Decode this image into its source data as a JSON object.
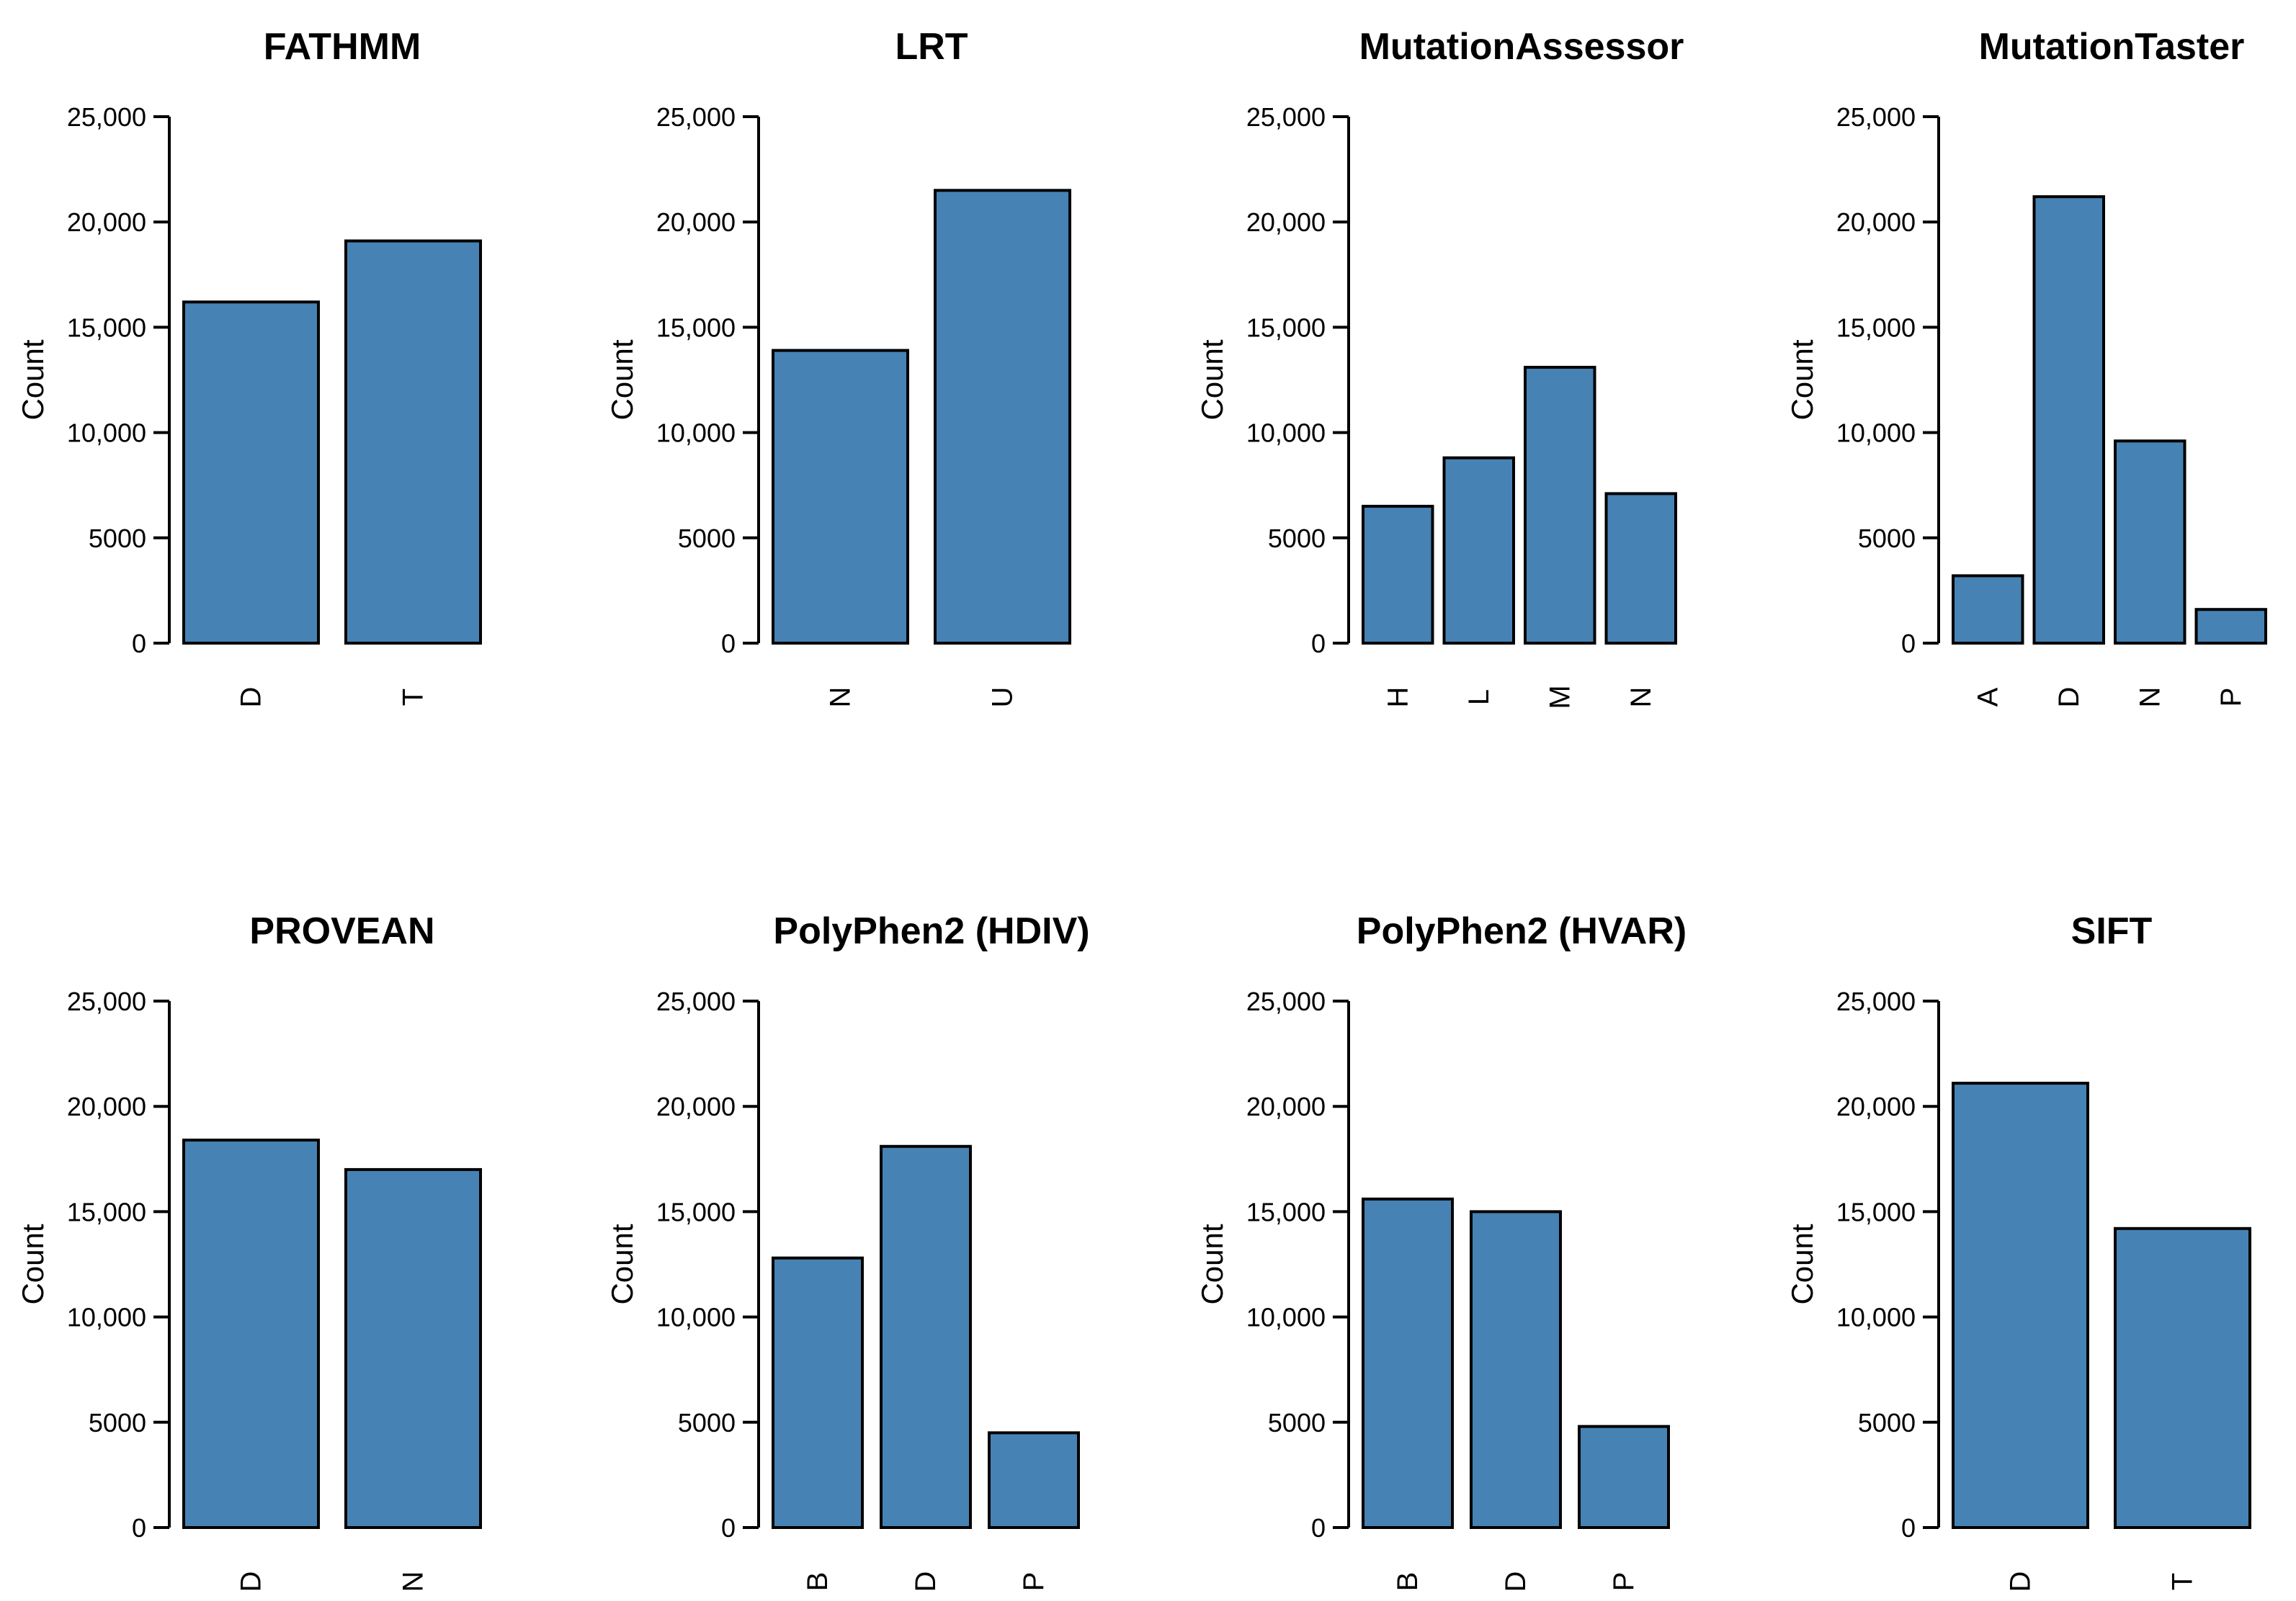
{
  "figure": {
    "bar_color": "#4682B4",
    "edge_color": "#000000"
  },
  "chart_data": [
    {
      "type": "bar",
      "title": "FATHMM",
      "categories": [
        "D",
        "T"
      ],
      "values": [
        16200,
        19100
      ],
      "xlabel": "",
      "ylabel": "Count",
      "ylim": [
        0,
        25000
      ],
      "yticks": [
        0,
        5000,
        10000,
        15000,
        20000,
        25000
      ],
      "ytick_labels": [
        "0",
        "5000",
        "10,000",
        "15,000",
        "20,000",
        "25,000"
      ]
    },
    {
      "type": "bar",
      "title": "LRT",
      "categories": [
        "N",
        "U"
      ],
      "values": [
        13900,
        21500
      ],
      "xlabel": "",
      "ylabel": "Count",
      "ylim": [
        0,
        25000
      ],
      "yticks": [
        0,
        5000,
        10000,
        15000,
        20000,
        25000
      ],
      "ytick_labels": [
        "0",
        "5000",
        "10,000",
        "15,000",
        "20,000",
        "25,000"
      ]
    },
    {
      "type": "bar",
      "title": "MutationAssessor",
      "categories": [
        "H",
        "L",
        "M",
        "N"
      ],
      "values": [
        6500,
        8800,
        13100,
        7100
      ],
      "xlabel": "",
      "ylabel": "Count",
      "ylim": [
        0,
        25000
      ],
      "yticks": [
        0,
        5000,
        10000,
        15000,
        20000,
        25000
      ],
      "ytick_labels": [
        "0",
        "5000",
        "10,000",
        "15,000",
        "20,000",
        "25,000"
      ]
    },
    {
      "type": "bar",
      "title": "MutationTaster",
      "categories": [
        "A",
        "D",
        "N",
        "P"
      ],
      "values": [
        3200,
        21200,
        9600,
        1600
      ],
      "xlabel": "",
      "ylabel": "Count",
      "ylim": [
        0,
        25000
      ],
      "yticks": [
        0,
        5000,
        10000,
        15000,
        20000,
        25000
      ],
      "ytick_labels": [
        "0",
        "5000",
        "10,000",
        "15,000",
        "20,000",
        "25,000"
      ]
    },
    {
      "type": "bar",
      "title": "PROVEAN",
      "categories": [
        "D",
        "N"
      ],
      "values": [
        18400,
        17000
      ],
      "xlabel": "",
      "ylabel": "Count",
      "ylim": [
        0,
        25000
      ],
      "yticks": [
        0,
        5000,
        10000,
        15000,
        20000,
        25000
      ],
      "ytick_labels": [
        "0",
        "5000",
        "10,000",
        "15,000",
        "20,000",
        "25,000"
      ]
    },
    {
      "type": "bar",
      "title": "PolyPhen2 (HDIV)",
      "categories": [
        "B",
        "D",
        "P"
      ],
      "values": [
        12800,
        18100,
        4500
      ],
      "xlabel": "",
      "ylabel": "Count",
      "ylim": [
        0,
        25000
      ],
      "yticks": [
        0,
        5000,
        10000,
        15000,
        20000,
        25000
      ],
      "ytick_labels": [
        "0",
        "5000",
        "10,000",
        "15,000",
        "20,000",
        "25,000"
      ]
    },
    {
      "type": "bar",
      "title": "PolyPhen2 (HVAR)",
      "categories": [
        "B",
        "D",
        "P"
      ],
      "values": [
        15600,
        15000,
        4800
      ],
      "xlabel": "",
      "ylabel": "Count",
      "ylim": [
        0,
        25000
      ],
      "yticks": [
        0,
        5000,
        10000,
        15000,
        20000,
        25000
      ],
      "ytick_labels": [
        "0",
        "5000",
        "10,000",
        "15,000",
        "20,000",
        "25,000"
      ]
    },
    {
      "type": "bar",
      "title": "SIFT",
      "categories": [
        "D",
        "T"
      ],
      "values": [
        21100,
        14200
      ],
      "xlabel": "",
      "ylabel": "Count",
      "ylim": [
        0,
        25000
      ],
      "yticks": [
        0,
        5000,
        10000,
        15000,
        20000,
        25000
      ],
      "ytick_labels": [
        "0",
        "5000",
        "10,000",
        "15,000",
        "20,000",
        "25,000"
      ]
    }
  ]
}
